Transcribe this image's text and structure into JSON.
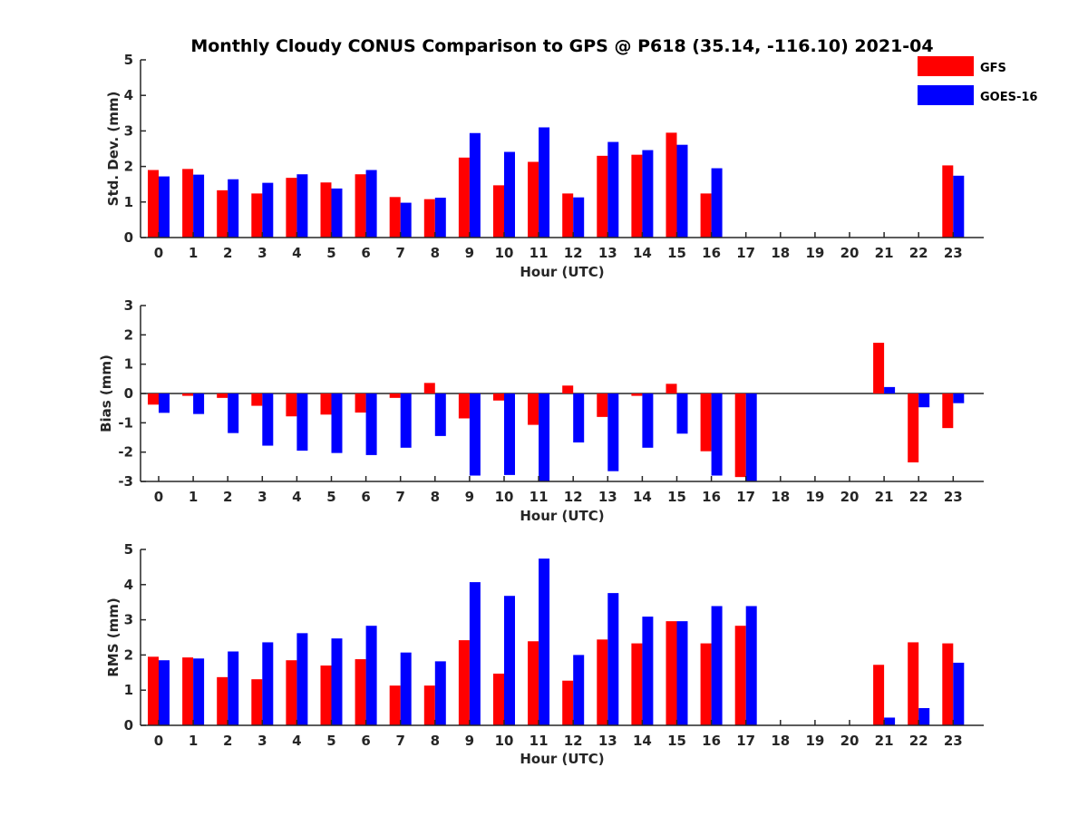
{
  "chart_data": {
    "title": "Monthly Cloudy CONUS Comparison to GPS @ P618 (35.14, -116.10) 2021-04",
    "legend": {
      "placement": "top-right",
      "entries": [
        {
          "name": "GFS",
          "color": "#ff0000"
        },
        {
          "name": "GOES-16",
          "color": "#0000ff"
        }
      ]
    },
    "panels": [
      {
        "type": "bar",
        "xlabel": "Hour (UTC)",
        "ylabel": "Std. Dev. (mm)",
        "ylim": [
          0,
          5
        ],
        "yticks": [
          "0",
          "1",
          "2",
          "3",
          "4",
          "5"
        ],
        "categories": [
          "0",
          "1",
          "2",
          "3",
          "4",
          "5",
          "6",
          "7",
          "8",
          "9",
          "10",
          "11",
          "12",
          "13",
          "14",
          "15",
          "16",
          "17",
          "18",
          "19",
          "20",
          "21",
          "22",
          "23"
        ],
        "series": [
          {
            "name": "GFS",
            "color": "#ff0000",
            "values": [
              1.9,
              1.93,
              1.33,
              1.24,
              1.68,
              1.55,
              1.78,
              1.14,
              1.08,
              2.25,
              1.47,
              2.13,
              1.24,
              2.3,
              2.33,
              2.95,
              1.24,
              null,
              null,
              null,
              null,
              null,
              null,
              2.03
            ]
          },
          {
            "name": "GOES-16",
            "color": "#0000ff",
            "values": [
              1.72,
              1.77,
              1.64,
              1.54,
              1.78,
              1.38,
              1.9,
              0.98,
              1.12,
              2.94,
              2.41,
              3.1,
              1.13,
              2.69,
              2.46,
              2.61,
              1.95,
              null,
              null,
              null,
              null,
              null,
              null,
              1.74
            ]
          }
        ]
      },
      {
        "type": "bar",
        "xlabel": "Hour (UTC)",
        "ylabel": "Bias (mm)",
        "ylim": [
          -3,
          3
        ],
        "yticks": [
          "-3",
          "-2",
          "-1",
          "0",
          "1",
          "2",
          "3"
        ],
        "zero_line": true,
        "categories": [
          "0",
          "1",
          "2",
          "3",
          "4",
          "5",
          "6",
          "7",
          "8",
          "9",
          "10",
          "11",
          "12",
          "13",
          "14",
          "15",
          "16",
          "17",
          "18",
          "19",
          "20",
          "21",
          "22",
          "23"
        ],
        "series": [
          {
            "name": "GFS",
            "color": "#ff0000",
            "values": [
              -0.38,
              -0.08,
              -0.15,
              -0.42,
              -0.78,
              -0.72,
              -0.65,
              -0.15,
              0.36,
              -0.85,
              -0.24,
              -1.07,
              0.27,
              -0.8,
              -0.08,
              0.33,
              -1.97,
              -2.85,
              null,
              null,
              null,
              1.73,
              -2.35,
              -1.18
            ]
          },
          {
            "name": "GOES-16",
            "color": "#0000ff",
            "values": [
              -0.66,
              -0.7,
              -1.35,
              -1.78,
              -1.95,
              -2.03,
              -2.1,
              -1.85,
              -1.45,
              -2.8,
              -2.78,
              -3.0,
              -1.67,
              -2.65,
              -1.85,
              -1.37,
              -2.8,
              -3.0,
              null,
              null,
              null,
              0.22,
              -0.47,
              -0.33
            ]
          }
        ]
      },
      {
        "type": "bar",
        "xlabel": "Hour (UTC)",
        "ylabel": "RMS (mm)",
        "ylim": [
          0,
          5
        ],
        "yticks": [
          "0",
          "1",
          "2",
          "3",
          "4",
          "5"
        ],
        "categories": [
          "0",
          "1",
          "2",
          "3",
          "4",
          "5",
          "6",
          "7",
          "8",
          "9",
          "10",
          "11",
          "12",
          "13",
          "14",
          "15",
          "16",
          "17",
          "18",
          "19",
          "20",
          "21",
          "22",
          "23"
        ],
        "series": [
          {
            "name": "GFS",
            "color": "#ff0000",
            "values": [
              1.95,
              1.93,
              1.37,
              1.31,
              1.85,
              1.7,
              1.88,
              1.13,
              1.13,
              2.42,
              1.47,
              2.39,
              1.27,
              2.44,
              2.33,
              2.96,
              2.33,
              2.83,
              null,
              null,
              null,
              1.72,
              2.36,
              2.33
            ]
          },
          {
            "name": "GOES-16",
            "color": "#0000ff",
            "values": [
              1.85,
              1.9,
              2.1,
              2.36,
              2.62,
              2.47,
              2.83,
              2.07,
              1.82,
              4.07,
              3.68,
              4.74,
              2.0,
              3.76,
              3.09,
              2.96,
              3.39,
              3.39,
              null,
              null,
              null,
              0.22,
              0.49,
              1.78
            ]
          }
        ]
      }
    ]
  }
}
